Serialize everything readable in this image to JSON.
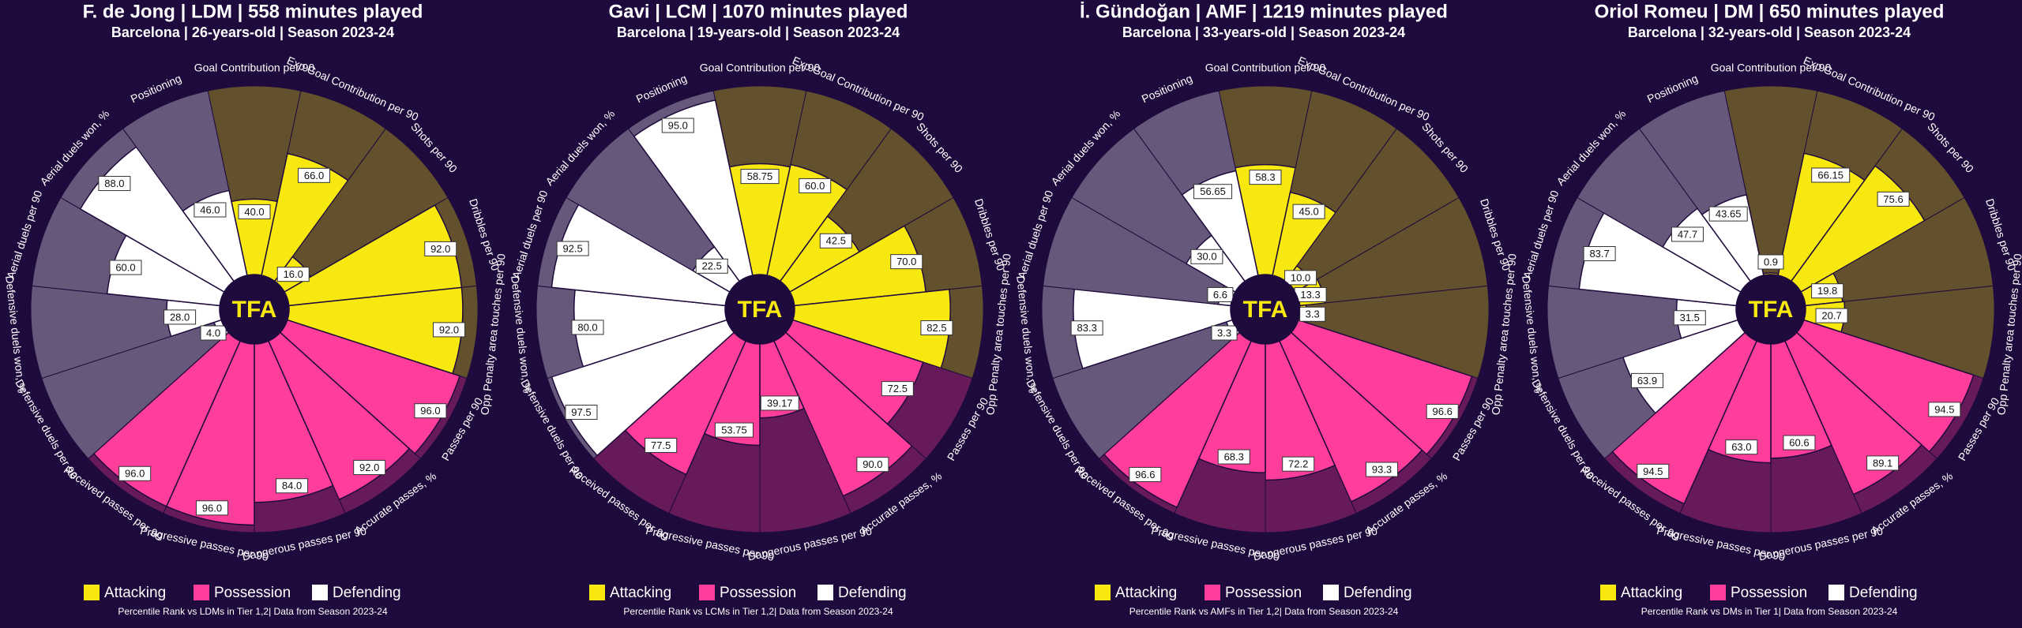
{
  "chart_data": [
    {
      "type": "pizza",
      "title": "F. de Jong | LDM | 558 minutes played",
      "subtitle": "Barcelona | 26-years-old | Season 2023-24",
      "logo": "TFA",
      "footnote": "Percentile Rank vs LDMs in Tier 1,2| Data from Season 2023-24",
      "ylim": [
        0,
        100
      ],
      "series": [
        {
          "name": "Attacking",
          "color": "#f7e80f",
          "categories": [
            "Goal Contribution per 90",
            "Exp Goal Contribution per 90",
            "Shots per 90",
            "Dribbles per 90",
            "Opp Penalty area touches per 90"
          ],
          "values": [
            40,
            66,
            16,
            92,
            92
          ],
          "value_labels": [
            "40.0",
            "66.0",
            "16.0",
            "92.0",
            "92.0"
          ]
        },
        {
          "name": "Possession",
          "color": "#ff3d9a",
          "categories": [
            "Passes per 90",
            "Accurate passes, %",
            "Dangerous passes per 90",
            "Progressive passes per 90",
            "Received passes per 90"
          ],
          "values": [
            96,
            92,
            84,
            96,
            96
          ],
          "value_labels": [
            "96.0",
            "92.0",
            "84.0",
            "96.0",
            "96.0"
          ]
        },
        {
          "name": "Defending",
          "color": "#ffffff",
          "categories": [
            "Defensive duels per 90",
            "Defensive duels won, %",
            "Aerial duels per 90",
            "Aerial duels won, %",
            "Positioning"
          ],
          "values": [
            4,
            28,
            60,
            88,
            46
          ],
          "value_labels": [
            "4.0",
            "28.0",
            "60.0",
            "88.0",
            "46.0"
          ]
        }
      ]
    },
    {
      "type": "pizza",
      "title": "Gavi | LCM | 1070 minutes played",
      "subtitle": "Barcelona | 19-years-old | Season 2023-24",
      "logo": "TFA",
      "footnote": "Percentile Rank vs LCMs in Tier 1,2| Data from Season 2023-24",
      "ylim": [
        0,
        100
      ],
      "series": [
        {
          "name": "Attacking",
          "color": "#f7e80f",
          "categories": [
            "Goal Contribution per 90",
            "Exp Goal Contribution per 90",
            "Shots per 90",
            "Dribbles per 90",
            "Opp Penalty area touches per 90"
          ],
          "values": [
            58.75,
            60,
            42.5,
            70,
            82.5
          ],
          "value_labels": [
            "58.75",
            "60.0",
            "42.5",
            "70.0",
            "82.5"
          ]
        },
        {
          "name": "Possession",
          "color": "#ff3d9a",
          "categories": [
            "Passes per 90",
            "Accurate passes, %",
            "Dangerous passes per 90",
            "Progressive passes per 90",
            "Received passes per 90"
          ],
          "values": [
            72.5,
            90,
            39.17,
            53.75,
            77.5
          ],
          "value_labels": [
            "72.5",
            "90.0",
            "39.17",
            "53.75",
            "77.5"
          ]
        },
        {
          "name": "Defending",
          "color": "#ffffff",
          "categories": [
            "Defensive duels per 90",
            "Defensive duels won, %",
            "Aerial duels per 90",
            "Aerial duels won, %",
            "Positioning"
          ],
          "values": [
            97.5,
            80,
            92.5,
            22.5,
            95
          ],
          "value_labels": [
            "97.5",
            "80.0",
            "92.5",
            "22.5",
            "95.0"
          ]
        }
      ]
    },
    {
      "type": "pizza",
      "title": "İ. Gündoğan | AMF | 1219 minutes played",
      "subtitle": "Barcelona | 33-years-old | Season 2023-24",
      "logo": "TFA",
      "footnote": "Percentile Rank vs AMFs in Tier 1,2| Data from Season 2023-24",
      "ylim": [
        0,
        100
      ],
      "series": [
        {
          "name": "Attacking",
          "color": "#f7e80f",
          "categories": [
            "Goal Contribution per 90",
            "Exp Goal Contribution per 90",
            "Shots per 90",
            "Dribbles per 90",
            "Opp Penalty area touches per 90"
          ],
          "values": [
            58.3,
            45,
            10,
            13.3,
            3.3
          ],
          "value_labels": [
            "58.3",
            "45.0",
            "10.0",
            "13.3",
            "3.3"
          ]
        },
        {
          "name": "Possession",
          "color": "#ff3d9a",
          "categories": [
            "Passes per 90",
            "Accurate passes, %",
            "Dangerous passes per 90",
            "Progressive passes per 90",
            "Received passes per 90"
          ],
          "values": [
            96.6,
            93.3,
            72.2,
            68.3,
            96.6
          ],
          "value_labels": [
            "96.6",
            "93.3",
            "72.2",
            "68.3",
            "96.6"
          ]
        },
        {
          "name": "Defending",
          "color": "#ffffff",
          "categories": [
            "Defensive duels per 90",
            "Defensive duels won, %",
            "Aerial duels per 90",
            "Aerial duels won, %",
            "Positioning"
          ],
          "values": [
            3.3,
            83.3,
            6.6,
            30,
            56.65
          ],
          "value_labels": [
            "3.3",
            "83.3",
            "6.6",
            "30.0",
            "56.65"
          ]
        }
      ]
    },
    {
      "type": "pizza",
      "title": "Oriol Romeu | DM | 650 minutes played",
      "subtitle": "Barcelona | 32-years-old | Season 2023-24",
      "logo": "TFA",
      "footnote": "Percentile Rank vs DMs in Tier 1| Data from Season 2023-24",
      "ylim": [
        0,
        100
      ],
      "series": [
        {
          "name": "Attacking",
          "color": "#f7e80f",
          "categories": [
            "Goal Contribution per 90",
            "Exp Goal Contribution per 90",
            "Shots per 90",
            "Dribbles per 90",
            "Opp Penalty area touches per 90"
          ],
          "values": [
            0.9,
            66.15,
            75.6,
            19.8,
            20.7
          ]
        },
        {
          "name": "Possession",
          "color": "#ff3d9a",
          "categories": [
            "Passes per 90",
            "Accurate passes, %",
            "Dangerous passes per 90",
            "Progressive passes per 90",
            "Received passes per 90"
          ],
          "values": [
            94.5,
            89.1,
            60.6,
            63,
            94.5
          ],
          "value_labels": [
            "94.5",
            "89.1",
            "60.6",
            "63.0",
            "94.5"
          ]
        },
        {
          "name": "Defending",
          "color": "#ffffff",
          "categories": [
            "Defensive duels per 90",
            "Defensive duels won, %",
            "Aerial duels per 90",
            "Aerial duels won, %",
            "Positioning"
          ],
          "values": [
            63.9,
            31.5,
            83.7,
            47.7,
            43.65
          ]
        }
      ]
    }
  ]
}
